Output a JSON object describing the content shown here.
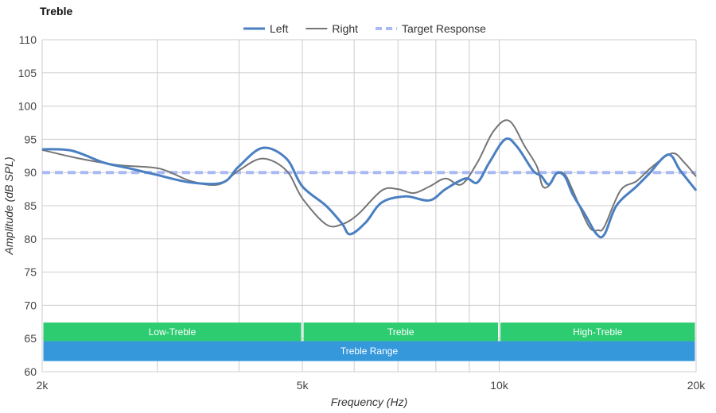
{
  "chart_data": {
    "type": "line",
    "title": "Treble",
    "xlabel": "Frequency (Hz)",
    "ylabel": "Amplitude (dB SPL)",
    "xscale": "log",
    "xlim": [
      2000,
      20000
    ],
    "ylim": [
      60,
      110
    ],
    "grid": true,
    "legend_position": "top-center",
    "x_ticks": [
      {
        "value": 2000,
        "label": "2k"
      },
      {
        "value": 5000,
        "label": "5k"
      },
      {
        "value": 10000,
        "label": "10k"
      },
      {
        "value": 20000,
        "label": "20k"
      }
    ],
    "x_gridlines": [
      2000,
      3000,
      4000,
      5000,
      6000,
      7000,
      8000,
      9000,
      10000,
      20000
    ],
    "y_ticks": [
      60,
      65,
      70,
      75,
      80,
      85,
      90,
      95,
      100,
      105,
      110
    ],
    "series": [
      {
        "name": "Left",
        "color": "#4a7fc1",
        "style": "solid",
        "points": [
          [
            2000,
            93.5
          ],
          [
            2218,
            93.3
          ],
          [
            2483,
            91.5
          ],
          [
            2698,
            90.7
          ],
          [
            2978,
            89.7
          ],
          [
            3378,
            88.5
          ],
          [
            3778,
            88.5
          ],
          [
            3996,
            90.9
          ],
          [
            4345,
            93.7
          ],
          [
            4726,
            92.1
          ],
          [
            5000,
            87.9
          ],
          [
            5433,
            85.0
          ],
          [
            5749,
            82.3
          ],
          [
            5915,
            80.7
          ],
          [
            6252,
            82.5
          ],
          [
            6614,
            85.5
          ],
          [
            7193,
            86.4
          ],
          [
            7823,
            85.8
          ],
          [
            8278,
            87.5
          ],
          [
            8875,
            89.1
          ],
          [
            9258,
            88.5
          ],
          [
            9655,
            91.5
          ],
          [
            10210,
            95.0
          ],
          [
            10645,
            93.9
          ],
          [
            11260,
            90.3
          ],
          [
            11585,
            89.5
          ],
          [
            11912,
            88.2
          ],
          [
            12246,
            89.9
          ],
          [
            12600,
            89.4
          ],
          [
            12955,
            86.7
          ],
          [
            13520,
            83.7
          ],
          [
            14093,
            80.7
          ],
          [
            14488,
            80.7
          ],
          [
            15104,
            85.0
          ],
          [
            16213,
            87.9
          ],
          [
            16907,
            89.7
          ],
          [
            18128,
            92.7
          ],
          [
            18911,
            90.3
          ],
          [
            20000,
            87.3
          ]
        ]
      },
      {
        "name": "Right",
        "color": "#757575",
        "style": "solid",
        "points": [
          [
            2000,
            93.4
          ],
          [
            2281,
            92.1
          ],
          [
            2624,
            91.1
          ],
          [
            3020,
            90.6
          ],
          [
            3378,
            88.7
          ],
          [
            3725,
            88.2
          ],
          [
            3996,
            90.3
          ],
          [
            4345,
            92.1
          ],
          [
            4726,
            90.3
          ],
          [
            5000,
            86.1
          ],
          [
            5433,
            82.2
          ],
          [
            5749,
            82.2
          ],
          [
            6082,
            83.7
          ],
          [
            6614,
            87.3
          ],
          [
            6996,
            87.5
          ],
          [
            7398,
            86.9
          ],
          [
            7823,
            87.9
          ],
          [
            8278,
            89.1
          ],
          [
            8753,
            88.2
          ],
          [
            9258,
            91.5
          ],
          [
            9795,
            96.2
          ],
          [
            10351,
            97.8
          ],
          [
            10946,
            93.9
          ],
          [
            11419,
            90.9
          ],
          [
            11639,
            88.0
          ],
          [
            11912,
            88.0
          ],
          [
            12246,
            89.9
          ],
          [
            12600,
            89.7
          ],
          [
            12955,
            87.3
          ],
          [
            13708,
            81.9
          ],
          [
            14172,
            81.3
          ],
          [
            14488,
            81.9
          ],
          [
            15326,
            87.3
          ],
          [
            16213,
            88.7
          ],
          [
            17150,
            90.9
          ],
          [
            18381,
            92.9
          ],
          [
            19185,
            91.5
          ],
          [
            20000,
            89.4
          ]
        ]
      },
      {
        "name": "Target Response",
        "color": "#a9b9f5",
        "style": "dashed",
        "points": [
          [
            2000,
            90
          ],
          [
            20000,
            90
          ]
        ]
      }
    ],
    "bands": [
      {
        "label": "Low-Treble",
        "from": 2000,
        "to": 5000,
        "color": "#2ecc71",
        "row": 1
      },
      {
        "label": "Treble",
        "from": 5000,
        "to": 10000,
        "color": "#2ecc71",
        "row": 1
      },
      {
        "label": "High-Treble",
        "from": 10000,
        "to": 20000,
        "color": "#2ecc71",
        "row": 1
      },
      {
        "label": "Treble Range",
        "from": 2000,
        "to": 20000,
        "color": "#3498db",
        "row": 2
      }
    ]
  }
}
